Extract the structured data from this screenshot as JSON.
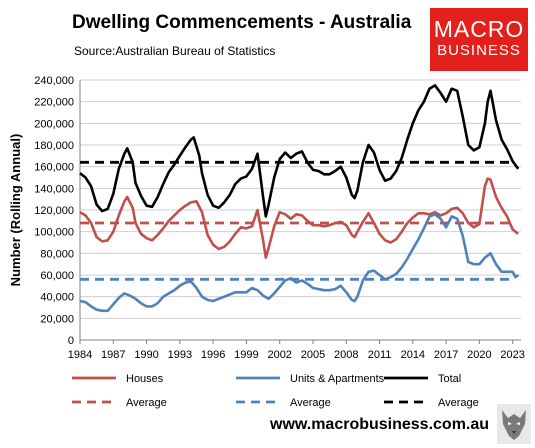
{
  "header": {
    "title": "Dwelling Commencements - Australia",
    "source": "Source:Australian Bureau of Statistics"
  },
  "logo": {
    "line1": "MACRO",
    "line2": "BUSINESS"
  },
  "footer": {
    "website": "www.macrobusiness.com.au"
  },
  "colors": {
    "houses": "#c0504d",
    "units": "#4f81bd",
    "total": "#000000"
  },
  "chart_data": {
    "type": "line",
    "ylabel": "Number (Rolling Annual)",
    "xlabel": "",
    "ylim": [
      0,
      240000
    ],
    "xlim": [
      1984,
      2023.75
    ],
    "y_ticks": [
      0,
      20000,
      40000,
      60000,
      80000,
      100000,
      120000,
      140000,
      160000,
      180000,
      200000,
      220000,
      240000
    ],
    "y_tick_labels": [
      "0",
      "20,000",
      "40,000",
      "60,000",
      "80,000",
      "100,000",
      "120,000",
      "140,000",
      "160,000",
      "180,000",
      "200,000",
      "220,000",
      "240,000"
    ],
    "x_tick_labels": [
      "1984",
      "1987",
      "1990",
      "1993",
      "1996",
      "1999",
      "2002",
      "2005",
      "2008",
      "2011",
      "2014",
      "2017",
      "2020",
      "2023"
    ],
    "grid": "horizontal",
    "legend": "bottom",
    "legend_labels": [
      "Houses",
      "Units & Apartments",
      "Total",
      "Average",
      "Average",
      "Average"
    ],
    "averages": {
      "houses": 108000,
      "units": 56000,
      "total": 164000
    },
    "series": [
      {
        "name": "Houses",
        "points": [
          [
            1984,
            118000
          ],
          [
            1984.5,
            115000
          ],
          [
            1985,
            108000
          ],
          [
            1985.5,
            95000
          ],
          [
            1986,
            91000
          ],
          [
            1986.5,
            92000
          ],
          [
            1987,
            100000
          ],
          [
            1987.5,
            115000
          ],
          [
            1988,
            128000
          ],
          [
            1988.25,
            132000
          ],
          [
            1988.75,
            122000
          ],
          [
            1989,
            108000
          ],
          [
            1989.5,
            98000
          ],
          [
            1990,
            94000
          ],
          [
            1990.5,
            92000
          ],
          [
            1991,
            97000
          ],
          [
            1991.5,
            103000
          ],
          [
            1992,
            110000
          ],
          [
            1992.5,
            115000
          ],
          [
            1993,
            120000
          ],
          [
            1993.5,
            124000
          ],
          [
            1994,
            127000
          ],
          [
            1994.5,
            128000
          ],
          [
            1995,
            118000
          ],
          [
            1995.5,
            97000
          ],
          [
            1996,
            88000
          ],
          [
            1996.5,
            84000
          ],
          [
            1997,
            86000
          ],
          [
            1997.5,
            91000
          ],
          [
            1998,
            98000
          ],
          [
            1998.5,
            104000
          ],
          [
            1999,
            103000
          ],
          [
            1999.5,
            105000
          ],
          [
            2000,
            120000
          ],
          [
            2000.5,
            92000
          ],
          [
            2000.75,
            76000
          ],
          [
            2001,
            85000
          ],
          [
            2001.5,
            105000
          ],
          [
            2002,
            118000
          ],
          [
            2002.5,
            116000
          ],
          [
            2003,
            112000
          ],
          [
            2003.5,
            116000
          ],
          [
            2004,
            115000
          ],
          [
            2004.5,
            110000
          ],
          [
            2005,
            106000
          ],
          [
            2005.5,
            106000
          ],
          [
            2006,
            105000
          ],
          [
            2006.5,
            106000
          ],
          [
            2007,
            108000
          ],
          [
            2007.5,
            109000
          ],
          [
            2008,
            106000
          ],
          [
            2008.5,
            97000
          ],
          [
            2008.75,
            95000
          ],
          [
            2009,
            100000
          ],
          [
            2009.5,
            109000
          ],
          [
            2010,
            117000
          ],
          [
            2010.5,
            108000
          ],
          [
            2011,
            98000
          ],
          [
            2011.5,
            92000
          ],
          [
            2012,
            90000
          ],
          [
            2012.5,
            93000
          ],
          [
            2013,
            100000
          ],
          [
            2013.5,
            108000
          ],
          [
            2014,
            113000
          ],
          [
            2014.5,
            117000
          ],
          [
            2015,
            117000
          ],
          [
            2015.5,
            116000
          ],
          [
            2016,
            118000
          ],
          [
            2016.5,
            115000
          ],
          [
            2017,
            117000
          ],
          [
            2017.5,
            121000
          ],
          [
            2018,
            122000
          ],
          [
            2018.5,
            117000
          ],
          [
            2019,
            108000
          ],
          [
            2019.5,
            104000
          ],
          [
            2020,
            107000
          ],
          [
            2020.25,
            125000
          ],
          [
            2020.5,
            142000
          ],
          [
            2020.75,
            149000
          ],
          [
            2021,
            148000
          ],
          [
            2021.5,
            132000
          ],
          [
            2022,
            122000
          ],
          [
            2022.5,
            114000
          ],
          [
            2023,
            102000
          ],
          [
            2023.5,
            98000
          ]
        ]
      },
      {
        "name": "Units & Apartments",
        "points": [
          [
            1984,
            36000
          ],
          [
            1984.5,
            35000
          ],
          [
            1985,
            31000
          ],
          [
            1985.5,
            28000
          ],
          [
            1986,
            27000
          ],
          [
            1986.5,
            27000
          ],
          [
            1987,
            33000
          ],
          [
            1987.5,
            39000
          ],
          [
            1988,
            43000
          ],
          [
            1988.5,
            41000
          ],
          [
            1989,
            38000
          ],
          [
            1989.5,
            34000
          ],
          [
            1990,
            31000
          ],
          [
            1990.5,
            31000
          ],
          [
            1991,
            34000
          ],
          [
            1991.5,
            40000
          ],
          [
            1992,
            43000
          ],
          [
            1992.5,
            46000
          ],
          [
            1993,
            50000
          ],
          [
            1993.5,
            53000
          ],
          [
            1994,
            54000
          ],
          [
            1994.5,
            48000
          ],
          [
            1995,
            40000
          ],
          [
            1995.5,
            37000
          ],
          [
            1996,
            36000
          ],
          [
            1996.5,
            38000
          ],
          [
            1997,
            40000
          ],
          [
            1997.5,
            42000
          ],
          [
            1998,
            44000
          ],
          [
            1998.5,
            44000
          ],
          [
            1999,
            44000
          ],
          [
            1999.5,
            48000
          ],
          [
            2000,
            46000
          ],
          [
            2000.5,
            41000
          ],
          [
            2001,
            38000
          ],
          [
            2001.5,
            43000
          ],
          [
            2002,
            49000
          ],
          [
            2002.5,
            55000
          ],
          [
            2003,
            57000
          ],
          [
            2003.5,
            53000
          ],
          [
            2004,
            55000
          ],
          [
            2004.5,
            52000
          ],
          [
            2005,
            48000
          ],
          [
            2005.5,
            47000
          ],
          [
            2006,
            46000
          ],
          [
            2006.5,
            46000
          ],
          [
            2007,
            47000
          ],
          [
            2007.5,
            50000
          ],
          [
            2008,
            44000
          ],
          [
            2008.5,
            37000
          ],
          [
            2008.75,
            36000
          ],
          [
            2009,
            40000
          ],
          [
            2009.5,
            55000
          ],
          [
            2010,
            63000
          ],
          [
            2010.5,
            64000
          ],
          [
            2011,
            60000
          ],
          [
            2011.5,
            56000
          ],
          [
            2012,
            58000
          ],
          [
            2012.5,
            61000
          ],
          [
            2013,
            67000
          ],
          [
            2013.5,
            75000
          ],
          [
            2014,
            84000
          ],
          [
            2014.5,
            93000
          ],
          [
            2015,
            103000
          ],
          [
            2015.5,
            114000
          ],
          [
            2016,
            116000
          ],
          [
            2016.5,
            112000
          ],
          [
            2017,
            104000
          ],
          [
            2017.5,
            114000
          ],
          [
            2018,
            112000
          ],
          [
            2018.5,
            96000
          ],
          [
            2019,
            72000
          ],
          [
            2019.5,
            70000
          ],
          [
            2020,
            70000
          ],
          [
            2020.5,
            76000
          ],
          [
            2021,
            80000
          ],
          [
            2021.5,
            70000
          ],
          [
            2022,
            63000
          ],
          [
            2022.5,
            63000
          ],
          [
            2023,
            63000
          ],
          [
            2023.25,
            58000
          ],
          [
            2023.5,
            60000
          ]
        ]
      },
      {
        "name": "Total",
        "points": [
          [
            1984,
            154000
          ],
          [
            1984.5,
            150000
          ],
          [
            1985,
            142000
          ],
          [
            1985.5,
            125000
          ],
          [
            1986,
            119000
          ],
          [
            1986.5,
            121000
          ],
          [
            1987,
            135000
          ],
          [
            1987.5,
            158000
          ],
          [
            1988,
            172000
          ],
          [
            1988.25,
            177000
          ],
          [
            1988.75,
            164000
          ],
          [
            1989,
            145000
          ],
          [
            1989.5,
            133000
          ],
          [
            1990,
            124000
          ],
          [
            1990.5,
            123000
          ],
          [
            1991,
            132000
          ],
          [
            1991.5,
            144000
          ],
          [
            1992,
            155000
          ],
          [
            1992.5,
            162000
          ],
          [
            1993,
            170000
          ],
          [
            1993.5,
            178000
          ],
          [
            1994,
            185000
          ],
          [
            1994.25,
            187000
          ],
          [
            1994.75,
            170000
          ],
          [
            1995,
            154000
          ],
          [
            1995.5,
            134000
          ],
          [
            1996,
            124000
          ],
          [
            1996.5,
            122000
          ],
          [
            1997,
            127000
          ],
          [
            1997.5,
            134000
          ],
          [
            1998,
            144000
          ],
          [
            1998.5,
            149000
          ],
          [
            1999,
            151000
          ],
          [
            1999.5,
            158000
          ],
          [
            2000,
            172000
          ],
          [
            2000.5,
            132000
          ],
          [
            2000.75,
            114000
          ],
          [
            2001,
            125000
          ],
          [
            2001.5,
            150000
          ],
          [
            2002,
            167000
          ],
          [
            2002.5,
            173000
          ],
          [
            2003,
            168000
          ],
          [
            2003.5,
            172000
          ],
          [
            2004,
            174000
          ],
          [
            2004.5,
            164000
          ],
          [
            2005,
            157000
          ],
          [
            2005.5,
            156000
          ],
          [
            2006,
            153000
          ],
          [
            2006.5,
            153000
          ],
          [
            2007,
            156000
          ],
          [
            2007.5,
            160000
          ],
          [
            2008,
            150000
          ],
          [
            2008.5,
            134000
          ],
          [
            2008.75,
            131000
          ],
          [
            2009,
            138000
          ],
          [
            2009.5,
            164000
          ],
          [
            2010,
            180000
          ],
          [
            2010.5,
            173000
          ],
          [
            2011,
            157000
          ],
          [
            2011.5,
            147000
          ],
          [
            2012,
            149000
          ],
          [
            2012.5,
            156000
          ],
          [
            2013,
            168000
          ],
          [
            2013.5,
            185000
          ],
          [
            2014,
            200000
          ],
          [
            2014.5,
            212000
          ],
          [
            2015,
            220000
          ],
          [
            2015.5,
            232000
          ],
          [
            2016,
            235000
          ],
          [
            2016.5,
            228000
          ],
          [
            2017,
            220000
          ],
          [
            2017.5,
            232000
          ],
          [
            2018,
            230000
          ],
          [
            2018.5,
            206000
          ],
          [
            2019,
            180000
          ],
          [
            2019.5,
            175000
          ],
          [
            2020,
            178000
          ],
          [
            2020.5,
            200000
          ],
          [
            2020.75,
            220000
          ],
          [
            2021,
            230000
          ],
          [
            2021.5,
            203000
          ],
          [
            2022,
            185000
          ],
          [
            2022.5,
            176000
          ],
          [
            2023,
            165000
          ],
          [
            2023.5,
            158000
          ]
        ]
      }
    ]
  }
}
